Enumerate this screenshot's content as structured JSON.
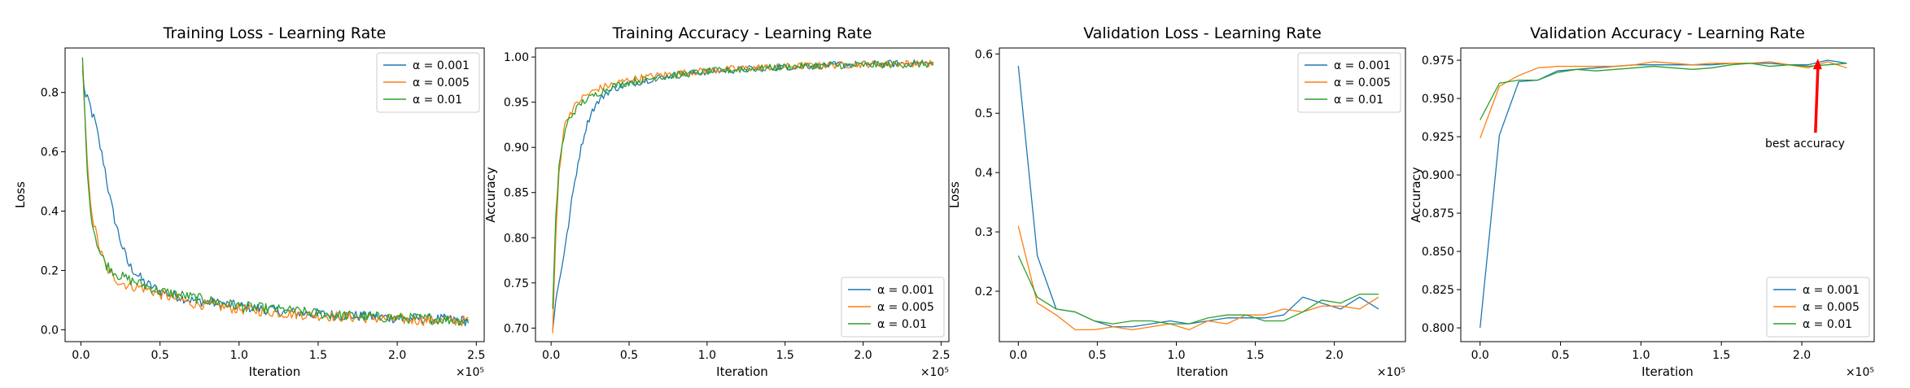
{
  "figure": {
    "background": "#ffffff"
  },
  "chart_data": [
    {
      "type": "line",
      "title": "Training Loss - Learning Rate",
      "xlabel": "Iteration",
      "ylabel": "Loss",
      "x_multiplier": "×10⁵",
      "xlim": [
        -0.1,
        2.55
      ],
      "ylim": [
        -0.04,
        0.95
      ],
      "xticks": [
        0.0,
        0.5,
        1.0,
        1.5,
        2.0,
        2.5
      ],
      "xtick_labels": [
        "0.0",
        "0.5",
        "1.0",
        "1.5",
        "2.0",
        "2.5"
      ],
      "yticks": [
        0.0,
        0.2,
        0.4,
        0.6,
        0.8
      ],
      "ytick_labels": [
        "0.0",
        "0.2",
        "0.4",
        "0.6",
        "0.8"
      ],
      "grid": false,
      "legend_loc": "upper right",
      "series": [
        {
          "name": "α = 0.001",
          "color": "#1f77b4",
          "x": [
            0.01,
            0.03,
            0.05,
            0.07,
            0.09,
            0.12,
            0.15,
            0.18,
            0.21,
            0.25,
            0.3,
            0.4,
            0.5,
            0.7,
            1.0,
            1.3,
            1.6,
            2.0,
            2.3,
            2.45
          ],
          "y": [
            0.87,
            0.78,
            0.77,
            0.73,
            0.7,
            0.62,
            0.55,
            0.45,
            0.38,
            0.3,
            0.22,
            0.16,
            0.13,
            0.1,
            0.08,
            0.06,
            0.05,
            0.04,
            0.035,
            0.03
          ]
        },
        {
          "name": "α = 0.005",
          "color": "#ff7f0e",
          "x": [
            0.01,
            0.03,
            0.05,
            0.08,
            0.12,
            0.16,
            0.2,
            0.25,
            0.3,
            0.4,
            0.5,
            0.7,
            1.0,
            1.3,
            1.6,
            2.0,
            2.3,
            2.45
          ],
          "y": [
            0.88,
            0.66,
            0.48,
            0.36,
            0.27,
            0.21,
            0.18,
            0.16,
            0.15,
            0.14,
            0.12,
            0.09,
            0.07,
            0.055,
            0.045,
            0.035,
            0.03,
            0.03
          ]
        },
        {
          "name": "α = 0.01",
          "color": "#2ca02c",
          "x": [
            0.01,
            0.03,
            0.05,
            0.08,
            0.12,
            0.16,
            0.2,
            0.25,
            0.3,
            0.4,
            0.5,
            0.7,
            1.0,
            1.3,
            1.6,
            2.0,
            2.3,
            2.45
          ],
          "y": [
            0.92,
            0.65,
            0.45,
            0.34,
            0.26,
            0.22,
            0.2,
            0.18,
            0.17,
            0.15,
            0.13,
            0.11,
            0.08,
            0.065,
            0.05,
            0.04,
            0.035,
            0.03
          ]
        }
      ],
      "noise": 0.018
    },
    {
      "type": "line",
      "title": "Training Accuracy - Learning Rate",
      "xlabel": "Iteration",
      "ylabel": "Accuracy",
      "x_multiplier": "×10⁵",
      "xlim": [
        -0.1,
        2.55
      ],
      "ylim": [
        0.685,
        1.01
      ],
      "xticks": [
        0.0,
        0.5,
        1.0,
        1.5,
        2.0,
        2.5
      ],
      "xtick_labels": [
        "0.0",
        "0.5",
        "1.0",
        "1.5",
        "2.0",
        "2.5"
      ],
      "yticks": [
        0.7,
        0.75,
        0.8,
        0.85,
        0.9,
        0.95,
        1.0
      ],
      "ytick_labels": [
        "0.70",
        "0.75",
        "0.80",
        "0.85",
        "0.90",
        "0.95",
        "1.00"
      ],
      "grid": false,
      "legend_loc": "lower right",
      "series": [
        {
          "name": "α = 0.001",
          "color": "#1f77b4",
          "x": [
            0.01,
            0.03,
            0.06,
            0.1,
            0.14,
            0.18,
            0.22,
            0.26,
            0.3,
            0.35,
            0.4,
            0.5,
            0.7,
            1.0,
            1.3,
            1.6,
            2.0,
            2.3,
            2.45
          ],
          "y": [
            0.7,
            0.73,
            0.76,
            0.8,
            0.85,
            0.89,
            0.92,
            0.94,
            0.95,
            0.96,
            0.965,
            0.97,
            0.978,
            0.984,
            0.987,
            0.99,
            0.992,
            0.993,
            0.993
          ]
        },
        {
          "name": "α = 0.005",
          "color": "#ff7f0e",
          "x": [
            0.01,
            0.03,
            0.05,
            0.08,
            0.11,
            0.15,
            0.2,
            0.25,
            0.3,
            0.4,
            0.5,
            0.7,
            1.0,
            1.3,
            1.6,
            2.0,
            2.3,
            2.45
          ],
          "y": [
            0.695,
            0.8,
            0.87,
            0.92,
            0.935,
            0.945,
            0.955,
            0.96,
            0.965,
            0.97,
            0.975,
            0.98,
            0.985,
            0.988,
            0.99,
            0.992,
            0.993,
            0.993
          ]
        },
        {
          "name": "α = 0.01",
          "color": "#2ca02c",
          "x": [
            0.01,
            0.03,
            0.05,
            0.08,
            0.11,
            0.15,
            0.2,
            0.25,
            0.3,
            0.4,
            0.5,
            0.7,
            1.0,
            1.3,
            1.6,
            2.0,
            2.3,
            2.45
          ],
          "y": [
            0.72,
            0.82,
            0.88,
            0.91,
            0.93,
            0.94,
            0.95,
            0.955,
            0.96,
            0.968,
            0.972,
            0.978,
            0.984,
            0.987,
            0.99,
            0.991,
            0.992,
            0.992
          ]
        }
      ],
      "noise": 0.004
    },
    {
      "type": "line",
      "title": "Validation Loss - Learning Rate",
      "xlabel": "Iteration",
      "ylabel": "Loss",
      "x_multiplier": "×10⁵",
      "xlim": [
        -0.12,
        2.45
      ],
      "ylim": [
        0.115,
        0.61
      ],
      "xticks": [
        0.0,
        0.5,
        1.0,
        1.5,
        2.0
      ],
      "xtick_labels": [
        "0.0",
        "0.5",
        "1.0",
        "1.5",
        "2.0"
      ],
      "yticks": [
        0.2,
        0.3,
        0.4,
        0.5,
        0.6
      ],
      "ytick_labels": [
        "0.2",
        "0.3",
        "0.4",
        "0.5",
        "0.6"
      ],
      "grid": false,
      "legend_loc": "upper right",
      "series": [
        {
          "name": "α = 0.001",
          "color": "#1f77b4",
          "x": [
            0.0,
            0.12,
            0.24,
            0.36,
            0.48,
            0.6,
            0.72,
            0.84,
            0.96,
            1.08,
            1.2,
            1.32,
            1.44,
            1.56,
            1.68,
            1.8,
            1.92,
            2.04,
            2.16,
            2.28
          ],
          "y": [
            0.58,
            0.26,
            0.17,
            0.165,
            0.15,
            0.14,
            0.14,
            0.145,
            0.15,
            0.145,
            0.15,
            0.155,
            0.155,
            0.155,
            0.16,
            0.19,
            0.18,
            0.17,
            0.19,
            0.17
          ]
        },
        {
          "name": "α = 0.005",
          "color": "#ff7f0e",
          "x": [
            0.0,
            0.12,
            0.24,
            0.36,
            0.48,
            0.6,
            0.72,
            0.84,
            0.96,
            1.08,
            1.2,
            1.32,
            1.44,
            1.56,
            1.68,
            1.8,
            1.92,
            2.04,
            2.16,
            2.28
          ],
          "y": [
            0.31,
            0.18,
            0.16,
            0.135,
            0.135,
            0.14,
            0.135,
            0.14,
            0.145,
            0.135,
            0.15,
            0.145,
            0.16,
            0.16,
            0.17,
            0.165,
            0.175,
            0.175,
            0.17,
            0.19
          ]
        },
        {
          "name": "α = 0.01",
          "color": "#2ca02c",
          "x": [
            0.0,
            0.12,
            0.24,
            0.36,
            0.48,
            0.6,
            0.72,
            0.84,
            0.96,
            1.08,
            1.2,
            1.32,
            1.44,
            1.56,
            1.68,
            1.8,
            1.92,
            2.04,
            2.16,
            2.28
          ],
          "y": [
            0.26,
            0.19,
            0.17,
            0.165,
            0.15,
            0.145,
            0.15,
            0.15,
            0.145,
            0.145,
            0.155,
            0.16,
            0.16,
            0.15,
            0.15,
            0.165,
            0.185,
            0.18,
            0.195,
            0.195
          ]
        }
      ]
    },
    {
      "type": "line",
      "title": "Validation Accuracy - Learning Rate",
      "xlabel": "Iteration",
      "ylabel": "Accuracy",
      "x_multiplier": "×10⁵",
      "xlim": [
        -0.12,
        2.45
      ],
      "ylim": [
        0.791,
        0.983
      ],
      "xticks": [
        0.0,
        0.5,
        1.0,
        1.5,
        2.0
      ],
      "xtick_labels": [
        "0.0",
        "0.5",
        "1.0",
        "1.5",
        "2.0"
      ],
      "yticks": [
        0.8,
        0.825,
        0.85,
        0.875,
        0.9,
        0.925,
        0.95,
        0.975
      ],
      "ytick_labels": [
        "0.800",
        "0.825",
        "0.850",
        "0.875",
        "0.900",
        "0.925",
        "0.950",
        "0.975"
      ],
      "grid": false,
      "legend_loc": "lower right",
      "annotation": {
        "text": "best accuracy",
        "arrow_to": [
          2.1,
          0.9755
        ],
        "text_at": [
          2.02,
          0.918
        ],
        "color": "#ff0000"
      },
      "series": [
        {
          "name": "α = 0.001",
          "color": "#1f77b4",
          "x": [
            0.0,
            0.12,
            0.24,
            0.36,
            0.48,
            0.6,
            0.72,
            0.84,
            0.96,
            1.08,
            1.2,
            1.32,
            1.44,
            1.56,
            1.68,
            1.8,
            1.92,
            2.04,
            2.16,
            2.28
          ],
          "y": [
            0.8,
            0.926,
            0.961,
            0.962,
            0.968,
            0.969,
            0.97,
            0.971,
            0.972,
            0.972,
            0.972,
            0.972,
            0.972,
            0.973,
            0.973,
            0.973,
            0.972,
            0.972,
            0.975,
            0.973
          ]
        },
        {
          "name": "α = 0.005",
          "color": "#ff7f0e",
          "x": [
            0.0,
            0.12,
            0.24,
            0.36,
            0.48,
            0.6,
            0.72,
            0.84,
            0.96,
            1.08,
            1.2,
            1.32,
            1.44,
            1.56,
            1.68,
            1.8,
            1.92,
            2.04,
            2.16,
            2.28
          ],
          "y": [
            0.924,
            0.958,
            0.965,
            0.97,
            0.971,
            0.971,
            0.971,
            0.971,
            0.972,
            0.974,
            0.973,
            0.972,
            0.973,
            0.973,
            0.973,
            0.974,
            0.972,
            0.97,
            0.974,
            0.97
          ]
        },
        {
          "name": "α = 0.01",
          "color": "#2ca02c",
          "x": [
            0.0,
            0.12,
            0.24,
            0.36,
            0.48,
            0.6,
            0.72,
            0.84,
            0.96,
            1.08,
            1.2,
            1.32,
            1.44,
            1.56,
            1.68,
            1.8,
            1.92,
            2.04,
            2.16,
            2.28
          ],
          "y": [
            0.936,
            0.96,
            0.962,
            0.962,
            0.967,
            0.969,
            0.968,
            0.969,
            0.97,
            0.971,
            0.97,
            0.969,
            0.97,
            0.972,
            0.973,
            0.971,
            0.972,
            0.971,
            0.972,
            0.973
          ]
        }
      ]
    }
  ]
}
